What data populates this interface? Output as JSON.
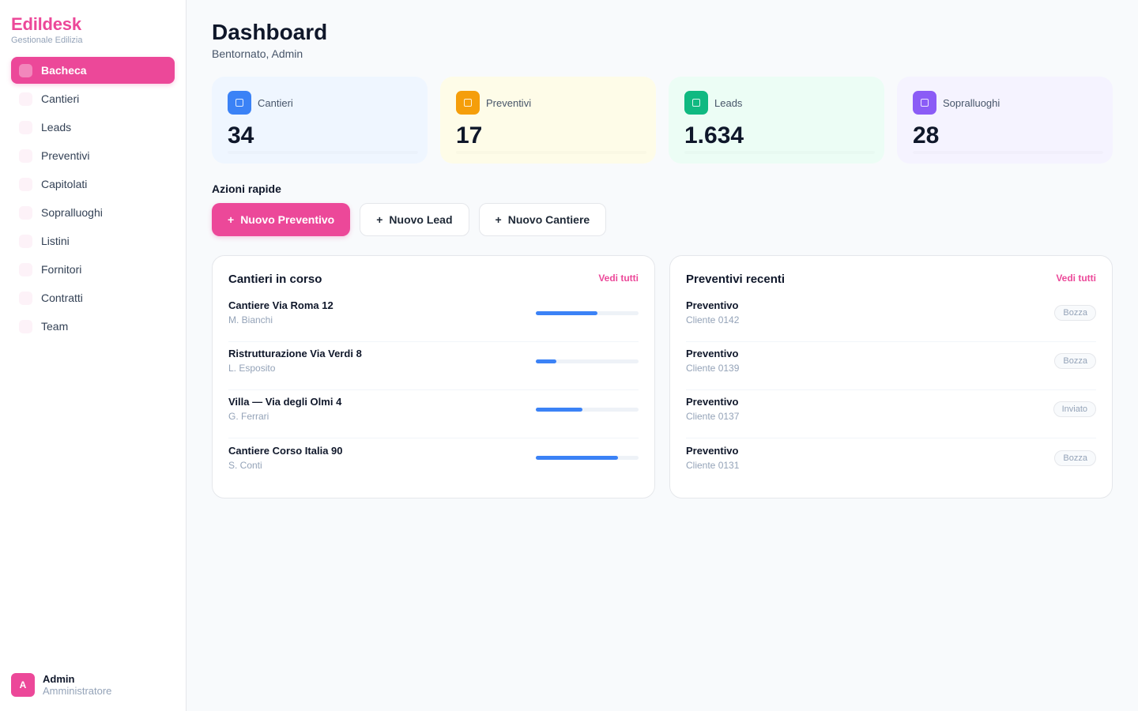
{
  "brand": {
    "name": "Edildesk",
    "subtitle": "Gestionale Edilizia"
  },
  "sidebar": {
    "items": [
      {
        "label": "Bacheca",
        "active": true
      },
      {
        "label": "Cantieri"
      },
      {
        "label": "Leads"
      },
      {
        "label": "Preventivi"
      },
      {
        "label": "Capitolati"
      },
      {
        "label": "Sopralluoghi"
      },
      {
        "label": "Listini"
      },
      {
        "label": "Fornitori"
      },
      {
        "label": "Contratti"
      },
      {
        "label": "Team"
      }
    ]
  },
  "user": {
    "initial": "A",
    "name": "Admin",
    "role": "Amministratore"
  },
  "header": {
    "title": "Dashboard",
    "subtitle": "Bentornato, Admin"
  },
  "stats": [
    {
      "label": "Cantieri",
      "value": "34",
      "icon": "building-icon",
      "color": "#3b82f6",
      "bg": "#eff6ff"
    },
    {
      "label": "Preventivi",
      "value": "17",
      "icon": "document-icon",
      "color": "#f59e0b",
      "bg": "#fefce8"
    },
    {
      "label": "Leads",
      "value": "1.634",
      "icon": "users-icon",
      "color": "#10b981",
      "bg": "#ecfdf5"
    },
    {
      "label": "Sopralluoghi",
      "value": "28",
      "icon": "clipboard-icon",
      "color": "#8b5cf6",
      "bg": "#f5f3ff"
    }
  ],
  "quick_actions": {
    "label": "Azioni rapide",
    "buttons": [
      {
        "label": "Nuovo Preventivo",
        "primary": true
      },
      {
        "label": "Nuovo Lead"
      },
      {
        "label": "Nuovo Cantiere"
      }
    ]
  },
  "cantieri": {
    "title": "Cantieri in corso",
    "link": "Vedi tutti",
    "rows": [
      {
        "name": "Cantiere Via Roma 12",
        "manager": "M. Bianchi",
        "progress": 0.6
      },
      {
        "name": "Ristrutturazione Via Verdi 8",
        "manager": "L. Esposito",
        "progress": 0.2
      },
      {
        "name": "Villa — Via degli Olmi 4",
        "manager": "G. Ferrari",
        "progress": 0.45
      },
      {
        "name": "Cantiere Corso Italia 90",
        "manager": "S. Conti",
        "progress": 0.8
      }
    ]
  },
  "preventivi": {
    "title": "Preventivi recenti",
    "link": "Vedi tutti",
    "rows": [
      {
        "name": "Preventivo",
        "client": "Cliente 0142",
        "status": "Bozza"
      },
      {
        "name": "Preventivo",
        "client": "Cliente 0139",
        "status": "Bozza"
      },
      {
        "name": "Preventivo",
        "client": "Cliente 0137",
        "status": "Inviato"
      },
      {
        "name": "Preventivo",
        "client": "Cliente 0131",
        "status": "Bozza"
      }
    ]
  }
}
